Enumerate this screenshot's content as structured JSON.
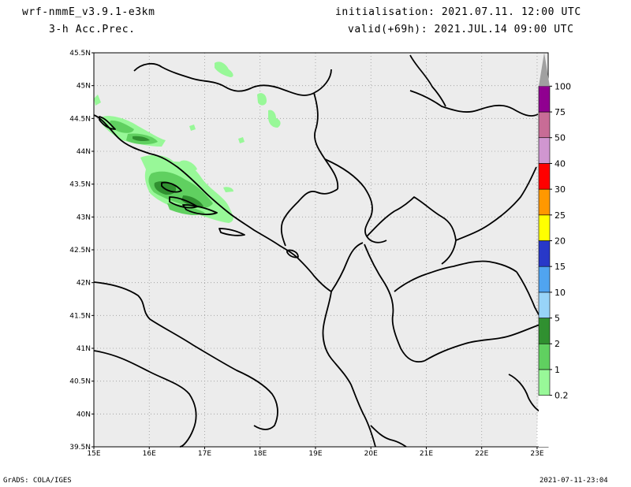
{
  "header": {
    "model": "wrf-nmmE_v3.9.1-e3km",
    "field": "3-h Acc.Prec.",
    "init": "initialisation: 2021.07.11.  12:00 UTC",
    "valid": "valid(+69h): 2021.JUL.14 09:00 UTC"
  },
  "footer": {
    "credit": "GrADS: COLA/IGES",
    "timestamp": "2021-07-11-23:04"
  },
  "map": {
    "lat_labels": [
      "45.5N",
      "45N",
      "44.5N",
      "44N",
      "43.5N",
      "43N",
      "42.5N",
      "42N",
      "41.5N",
      "41N",
      "40.5N",
      "40N",
      "39.5N"
    ],
    "lon_labels": [
      "15E",
      "16E",
      "17E",
      "18E",
      "19E",
      "20E",
      "21E",
      "22E",
      "23E"
    ],
    "lat_range": [
      39.5,
      45.5
    ],
    "lon_range": [
      15.0,
      23.2
    ],
    "background_color": "#ececec",
    "grid": true
  },
  "colorbar": {
    "levels": [
      "0.2",
      "1",
      "2",
      "5",
      "10",
      "15",
      "20",
      "25",
      "30",
      "40",
      "50",
      "75",
      "100"
    ],
    "colors": [
      "#ffffff",
      "#98f898",
      "#60d060",
      "#309030",
      "#98d4f8",
      "#50a4f0",
      "#2838c8",
      "#ffff00",
      "#ff9800",
      "#ff0000",
      "#d096d0",
      "#c86c96",
      "#900090",
      "#a0a0a0"
    ]
  }
}
